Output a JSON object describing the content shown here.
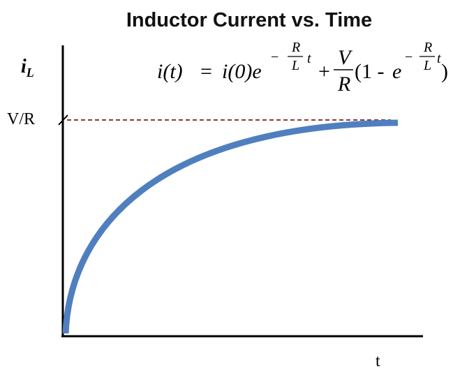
{
  "title": "Inductor Current vs. Time",
  "y_axis": {
    "label": "i",
    "subscript": "L"
  },
  "x_axis": {
    "label": "t"
  },
  "marker": "V/R",
  "equation": {
    "lhs": "i(t)",
    "equals": "=",
    "term1": "i(0)e",
    "exp1": {
      "sign": "−",
      "num": "R",
      "den": "L",
      "var": "t"
    },
    "plus": "+",
    "frac": {
      "num": "V",
      "den": "R"
    },
    "paren_open": "(1 -",
    "e": "e",
    "exp2": {
      "sign": "−",
      "num": "R",
      "den": "L",
      "var": "t"
    },
    "paren_close": ")"
  }
}
